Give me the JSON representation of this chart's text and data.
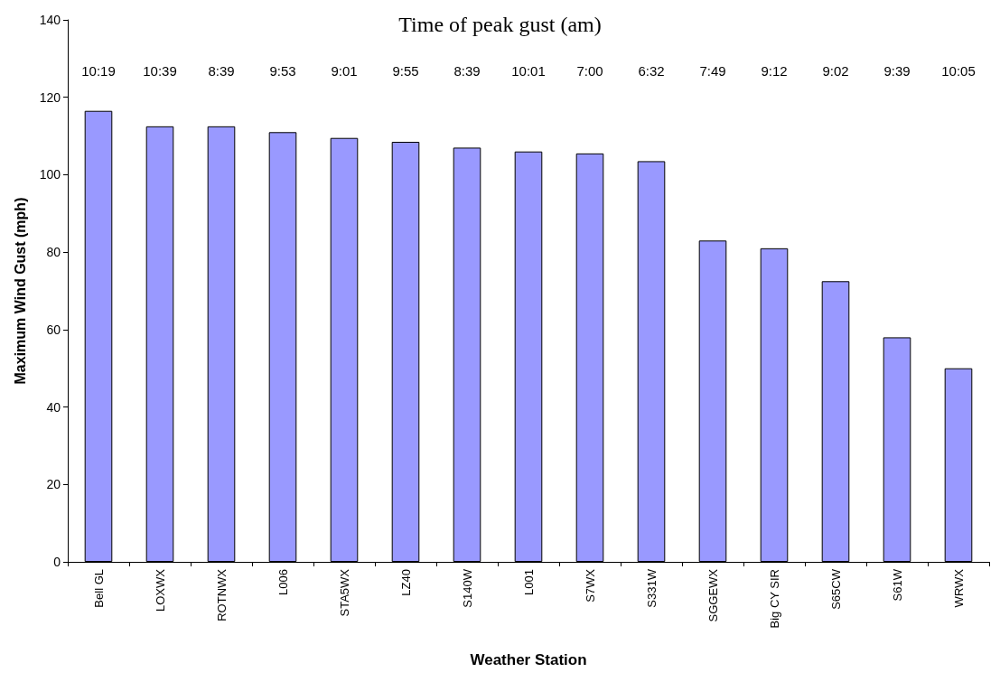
{
  "chart_data": {
    "type": "bar",
    "title": "Time of peak gust (am)",
    "xlabel": "Weather Station",
    "ylabel": "Maximum Wind Gust (mph)",
    "categories": [
      "Bell GL",
      "LOXWX",
      "ROTNWX",
      "L006",
      "STA5WX",
      "LZ40",
      "S140W",
      "L001",
      "S7WX",
      "S331W",
      "SGGEWX",
      "Big CY SIR",
      "S65CW",
      "S61W",
      "WRWX"
    ],
    "values": [
      116.5,
      112.5,
      112.5,
      111,
      109.5,
      108.5,
      107,
      106,
      105.5,
      103.5,
      83,
      81,
      72.5,
      58,
      50
    ],
    "color": "#9999ff",
    "ylim": [
      0,
      140
    ],
    "yticks": [
      0,
      20,
      40,
      60,
      80,
      100,
      120,
      140
    ],
    "grid": false,
    "annotations": [
      "10:19",
      "10:39",
      "8:39",
      "9:53",
      "9:01",
      "9:55",
      "8:39",
      "10:01",
      "7:00",
      "6:32",
      "7:49",
      "9:12",
      "9:02",
      "9:39",
      "10:05"
    ]
  }
}
